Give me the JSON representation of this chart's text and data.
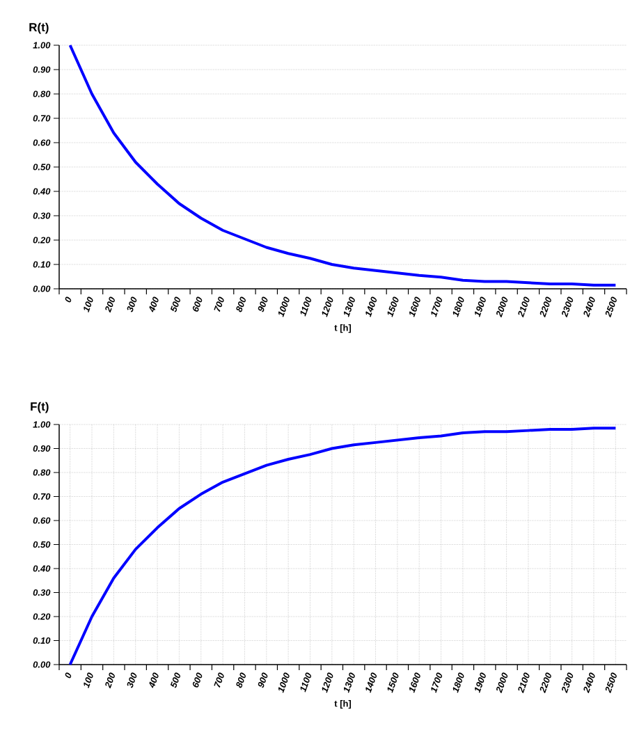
{
  "chart_data": [
    {
      "type": "line",
      "ylabel": "R(t)",
      "xlabel": "t [h]",
      "categories": [
        "0",
        "100",
        "200",
        "300",
        "400",
        "500",
        "600",
        "700",
        "800",
        "900",
        "1000",
        "1100",
        "1200",
        "1300",
        "1400",
        "1500",
        "1600",
        "1700",
        "1800",
        "1900",
        "2000",
        "2100",
        "2200",
        "2300",
        "2400",
        "2500"
      ],
      "series": [
        {
          "color": "#0000ff",
          "values": [
            1.0,
            0.8,
            0.64,
            0.52,
            0.43,
            0.35,
            0.29,
            0.24,
            0.205,
            0.17,
            0.145,
            0.125,
            0.1,
            0.085,
            0.075,
            0.065,
            0.055,
            0.048,
            0.035,
            0.03,
            0.03,
            0.025,
            0.02,
            0.02,
            0.015,
            0.015
          ]
        }
      ],
      "ylim": [
        0,
        1
      ],
      "yticks": [
        {
          "value": 0,
          "label": "0.00"
        },
        {
          "value": 0.1,
          "label": "0.10"
        },
        {
          "value": 0.2,
          "label": "0.20"
        },
        {
          "value": 0.3,
          "label": "0.30"
        },
        {
          "value": 0.4,
          "label": "0.40"
        },
        {
          "value": 0.5,
          "label": "0.50"
        },
        {
          "value": 0.6,
          "label": "0.60"
        },
        {
          "value": 0.7,
          "label": "0.70"
        },
        {
          "value": 0.8,
          "label": "0.80"
        },
        {
          "value": 0.9,
          "label": "0.90"
        },
        {
          "value": 1,
          "label": "1.00"
        }
      ],
      "grid": "y"
    },
    {
      "type": "line",
      "ylabel": "F(t)",
      "xlabel": "t [h]",
      "categories": [
        "0",
        "100",
        "200",
        "300",
        "400",
        "500",
        "600",
        "700",
        "800",
        "900",
        "1000",
        "1100",
        "1200",
        "1300",
        "1400",
        "1500",
        "1600",
        "1700",
        "1800",
        "1900",
        "2000",
        "2100",
        "2200",
        "2300",
        "2400",
        "2500"
      ],
      "series": [
        {
          "color": "#0000ff",
          "values": [
            0.0,
            0.2,
            0.36,
            0.48,
            0.57,
            0.65,
            0.71,
            0.76,
            0.795,
            0.83,
            0.855,
            0.875,
            0.9,
            0.915,
            0.925,
            0.935,
            0.945,
            0.952,
            0.965,
            0.97,
            0.97,
            0.975,
            0.98,
            0.98,
            0.985,
            0.985
          ]
        }
      ],
      "ylim": [
        0,
        1
      ],
      "yticks": [
        {
          "value": 0,
          "label": "0.00"
        },
        {
          "value": 0.1,
          "label": "0.10"
        },
        {
          "value": 0.2,
          "label": "0.20"
        },
        {
          "value": 0.3,
          "label": "0.30"
        },
        {
          "value": 0.4,
          "label": "0.40"
        },
        {
          "value": 0.5,
          "label": "0.50"
        },
        {
          "value": 0.6,
          "label": "0.60"
        },
        {
          "value": 0.7,
          "label": "0.70"
        },
        {
          "value": 0.8,
          "label": "0.80"
        },
        {
          "value": 0.9,
          "label": "0.90"
        },
        {
          "value": 1,
          "label": "1.00"
        }
      ],
      "grid": true
    }
  ]
}
